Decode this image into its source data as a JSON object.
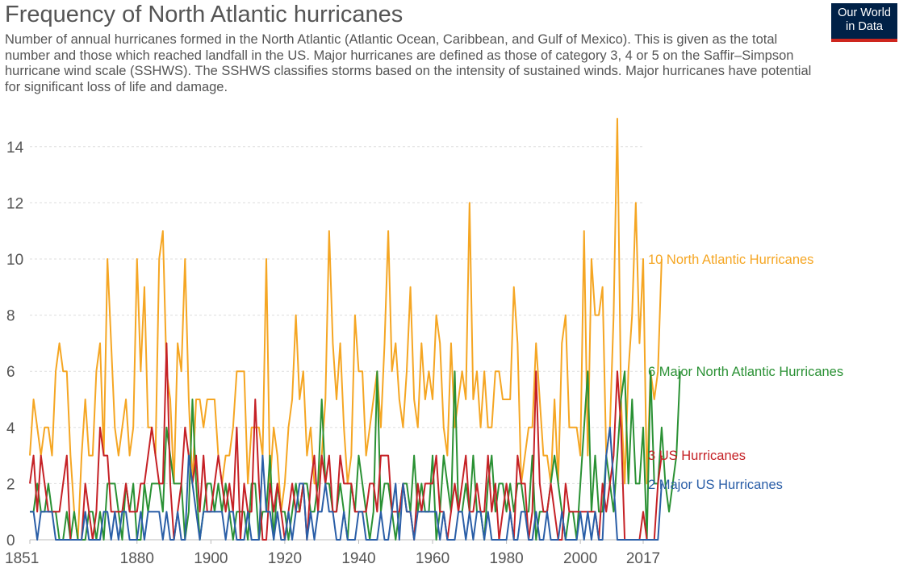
{
  "header": {
    "title": "Frequency of North Atlantic hurricanes",
    "subtitle": "Number of annual hurricanes formed in the North Atlantic (Atlantic Ocean, Caribbean, and Gulf of Mexico). This is given as the total number and those which reached landfall in the US. Major hurricanes are defined as those of category 3, 4 or 5 on the Saffir–Simpson hurricane wind scale (SSHWS). The SSHWS classifies storms based on the intensity of sustained winds. Major hurricanes have potential for significant loss of life and damage.",
    "logo_line1": "Our World",
    "logo_line2": "in Data"
  },
  "chart_data": {
    "type": "line",
    "title": "Frequency of North Atlantic hurricanes",
    "xlabel": "",
    "ylabel": "",
    "xlim": [
      1851,
      2017
    ],
    "ylim": [
      0,
      15
    ],
    "xticks": [
      1851,
      1880,
      1900,
      1920,
      1940,
      1960,
      1980,
      2000,
      2017
    ],
    "yticks": [
      0,
      2,
      4,
      6,
      8,
      10,
      12,
      14
    ],
    "grid": "horizontal dashed",
    "legend": "end-of-line labels",
    "x_start": 1851,
    "series": [
      {
        "name": "North Atlantic Hurricanes",
        "end_label": "10 North Atlantic Hurricanes",
        "color": "#f5a623",
        "values": [
          3,
          5,
          4,
          3,
          4,
          4,
          3,
          6,
          7,
          6,
          6,
          3,
          1,
          0,
          3,
          5,
          3,
          3,
          6,
          7,
          3,
          10,
          7,
          4,
          3,
          4,
          5,
          3,
          4,
          10,
          6,
          9,
          4,
          4,
          3,
          10,
          11,
          6,
          5,
          2,
          7,
          6,
          10,
          5,
          2,
          5,
          5,
          4,
          5,
          5,
          5,
          3,
          2,
          3,
          3,
          4,
          6,
          6,
          6,
          2,
          4,
          4,
          4,
          3,
          10,
          2,
          4,
          3,
          1,
          2,
          4,
          5,
          8,
          5,
          6,
          3,
          4,
          2,
          2,
          3,
          5,
          11,
          7,
          5,
          7,
          4,
          2,
          3,
          8,
          6,
          6,
          3,
          4,
          5,
          6,
          4,
          7,
          11,
          6,
          7,
          5,
          4,
          6,
          9,
          5,
          4,
          7,
          5,
          6,
          5,
          8,
          7,
          4,
          3,
          7,
          4,
          5,
          6,
          5,
          12,
          5,
          6,
          4,
          6,
          4,
          4,
          6,
          6,
          5,
          5,
          5,
          9,
          7,
          2,
          3,
          4,
          4,
          7,
          5,
          3,
          3,
          2,
          5,
          2,
          7,
          8,
          4,
          4,
          4,
          3,
          11,
          3,
          10,
          8,
          8,
          9,
          3,
          4,
          8,
          15,
          5,
          2,
          6,
          8,
          12,
          7,
          10,
          2,
          6,
          5,
          6,
          10
        ],
        "last_value": 10
      },
      {
        "name": "Major North Atlantic Hurricanes",
        "end_label": "6 Major North Atlantic Hurricanes",
        "color": "#2a9134",
        "values": [
          1,
          1,
          2,
          1,
          1,
          2,
          1,
          1,
          0,
          0,
          1,
          0,
          1,
          0,
          0,
          0,
          1,
          1,
          0,
          1,
          0,
          2,
          2,
          2,
          1,
          0,
          2,
          1,
          2,
          0,
          0,
          2,
          1,
          2,
          2,
          2,
          1,
          4,
          3,
          2,
          2,
          2,
          0,
          1,
          5,
          2,
          0,
          1,
          2,
          2,
          1,
          2,
          1,
          2,
          1,
          0,
          1,
          1,
          1,
          0,
          2,
          2,
          0,
          1,
          1,
          3,
          0,
          2,
          1,
          1,
          0,
          1,
          2,
          1,
          2,
          2,
          1,
          1,
          2,
          5,
          2,
          2,
          1,
          1,
          2,
          1,
          0,
          2,
          1,
          3,
          2,
          1,
          0,
          1,
          6,
          1,
          2,
          2,
          1,
          0,
          1,
          2,
          2,
          1,
          3,
          1,
          2,
          1,
          1,
          3,
          0,
          1,
          3,
          2,
          1,
          6,
          1,
          1,
          2,
          1,
          3,
          1,
          1,
          0,
          2,
          3,
          1,
          2,
          2,
          1,
          2,
          1,
          2,
          2,
          1,
          1,
          3,
          0,
          1,
          1,
          1,
          2,
          3,
          2,
          1,
          0,
          1,
          1,
          0,
          2,
          4,
          6,
          1,
          3,
          1,
          1,
          3,
          2,
          1,
          3,
          5,
          6,
          2,
          5,
          2,
          2,
          4,
          0,
          6,
          2,
          2,
          4,
          2,
          1,
          2,
          3,
          6
        ],
        "last_value": 6
      },
      {
        "name": "US Hurricanes",
        "end_label": "3 US Hurricanes",
        "color": "#c52126",
        "values": [
          2,
          3,
          1,
          3,
          2,
          1,
          1,
          1,
          1,
          2,
          3,
          0,
          0,
          0,
          0,
          2,
          1,
          0,
          1,
          4,
          3,
          3,
          1,
          1,
          1,
          1,
          2,
          1,
          1,
          1,
          2,
          2,
          3,
          4,
          3,
          2,
          2,
          7,
          2,
          0,
          1,
          2,
          4,
          3,
          2,
          3,
          1,
          3,
          1,
          1,
          2,
          3,
          2,
          1,
          2,
          1,
          4,
          0,
          2,
          1,
          1,
          5,
          2,
          0,
          0,
          2,
          1,
          2,
          1,
          0,
          1,
          2,
          1,
          1,
          2,
          0,
          2,
          3,
          1,
          3,
          2,
          3,
          1,
          1,
          3,
          2,
          2,
          2,
          1,
          1,
          1,
          1,
          2,
          2,
          1,
          3,
          3,
          3,
          1,
          1,
          1,
          2,
          1,
          1,
          0,
          2,
          1,
          2,
          2,
          2,
          3,
          1,
          1,
          0,
          1,
          2,
          1,
          2,
          3,
          1,
          1,
          2,
          1,
          1,
          3,
          1,
          2,
          0,
          1,
          2,
          1,
          0,
          3,
          2,
          2,
          0,
          1,
          6,
          2,
          1,
          1,
          2,
          1,
          0,
          0,
          2,
          1,
          1,
          1,
          1,
          1,
          1,
          1,
          1,
          0,
          2,
          1,
          2,
          3,
          6,
          4,
          0,
          0,
          0,
          0,
          0,
          1,
          0,
          0,
          0,
          2,
          3
        ],
        "last_value": 3
      },
      {
        "name": "Major US Hurricanes",
        "end_label": "2 Major US Hurricanes",
        "color": "#2a5ea7",
        "values": [
          1,
          1,
          0,
          1,
          1,
          1,
          1,
          0,
          0,
          0,
          0,
          0,
          0,
          0,
          0,
          1,
          0,
          0,
          0,
          0,
          1,
          1,
          0,
          1,
          0,
          1,
          1,
          0,
          0,
          0,
          1,
          0,
          1,
          1,
          1,
          1,
          0,
          1,
          0,
          0,
          1,
          0,
          0,
          3,
          2,
          1,
          0,
          1,
          1,
          1,
          1,
          1,
          1,
          0,
          1,
          1,
          0,
          0,
          0,
          1,
          0,
          0,
          0,
          3,
          1,
          1,
          0,
          1,
          0,
          0,
          1,
          0,
          1,
          2,
          2,
          0,
          1,
          0,
          1,
          1,
          2,
          1,
          1,
          0,
          0,
          1,
          0,
          0,
          0,
          1,
          1,
          0,
          0,
          0,
          0,
          1,
          0,
          0,
          1,
          2,
          0,
          2,
          1,
          1,
          0,
          1,
          1,
          1,
          1,
          1,
          1,
          0,
          1,
          0,
          0,
          0,
          1,
          1,
          0,
          1,
          0,
          1,
          1,
          0,
          1,
          0,
          0,
          0,
          0,
          0,
          1,
          0,
          0,
          1,
          1,
          0,
          0,
          1,
          0,
          0,
          1,
          0,
          0,
          0,
          1,
          0,
          0,
          0,
          0,
          1,
          0,
          1,
          0,
          1,
          0,
          0,
          3,
          4,
          2,
          0,
          0,
          0,
          0,
          0,
          0,
          0,
          0,
          0,
          0,
          0,
          0,
          2
        ],
        "last_value": 2
      }
    ]
  }
}
